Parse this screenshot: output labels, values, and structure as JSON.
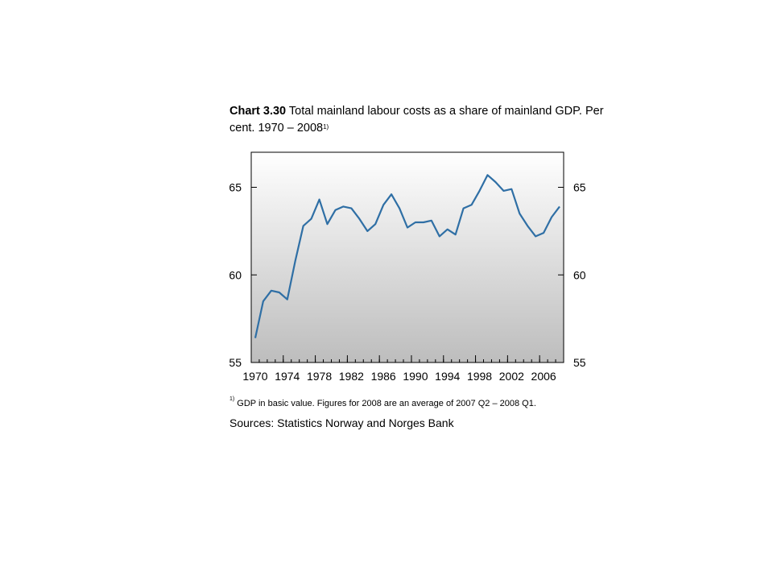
{
  "title": {
    "bold": "Chart 3.30",
    "text": "Total mainland labour costs as a share of mainland GDP. Per cent. 1970 – 2008",
    "sup": "1)"
  },
  "footnote": {
    "sup": "1)",
    "text": "GDP in basic value. Figures for 2008 are an average of 2007 Q2 – 2008 Q1."
  },
  "sources": "Sources: Statistics Norway and Norges Bank",
  "colors": {
    "line": "#2f6fa5",
    "background_top": "#ffffff",
    "background_bottom": "#bdbdbd"
  },
  "chart_data": {
    "type": "line",
    "x_ticks": [
      "1970",
      "1974",
      "1978",
      "1982",
      "1986",
      "1990",
      "1994",
      "1998",
      "2002",
      "2006"
    ],
    "y_ticks_left": [
      "65",
      "60",
      "55"
    ],
    "y_ticks_right": [
      "65",
      "60",
      "55"
    ],
    "ylim": [
      55,
      67
    ],
    "xlim": [
      1970,
      2008
    ],
    "grid": false,
    "series": [
      {
        "x": [
          1970,
          1971,
          1972,
          1973,
          1974,
          1975,
          1976,
          1977,
          1978,
          1979,
          1980,
          1981,
          1982,
          1983,
          1984,
          1985,
          1986,
          1987,
          1988,
          1989,
          1990,
          1991,
          1992,
          1993,
          1994,
          1995,
          1996,
          1997,
          1998,
          1999,
          2000,
          2001,
          2002,
          2003,
          2004,
          2005,
          2006,
          2007,
          2008
        ],
        "y": [
          56.4,
          58.5,
          59.1,
          59.0,
          58.6,
          60.8,
          62.8,
          63.2,
          64.3,
          62.9,
          63.7,
          63.9,
          63.8,
          63.2,
          62.5,
          62.9,
          64.0,
          64.6,
          63.8,
          62.7,
          63.0,
          63.0,
          63.1,
          62.2,
          62.6,
          62.3,
          63.8,
          64.0,
          64.8,
          65.7,
          65.3,
          64.8,
          64.9,
          63.5,
          62.8,
          62.2,
          62.4,
          63.3,
          63.9
        ]
      }
    ]
  }
}
